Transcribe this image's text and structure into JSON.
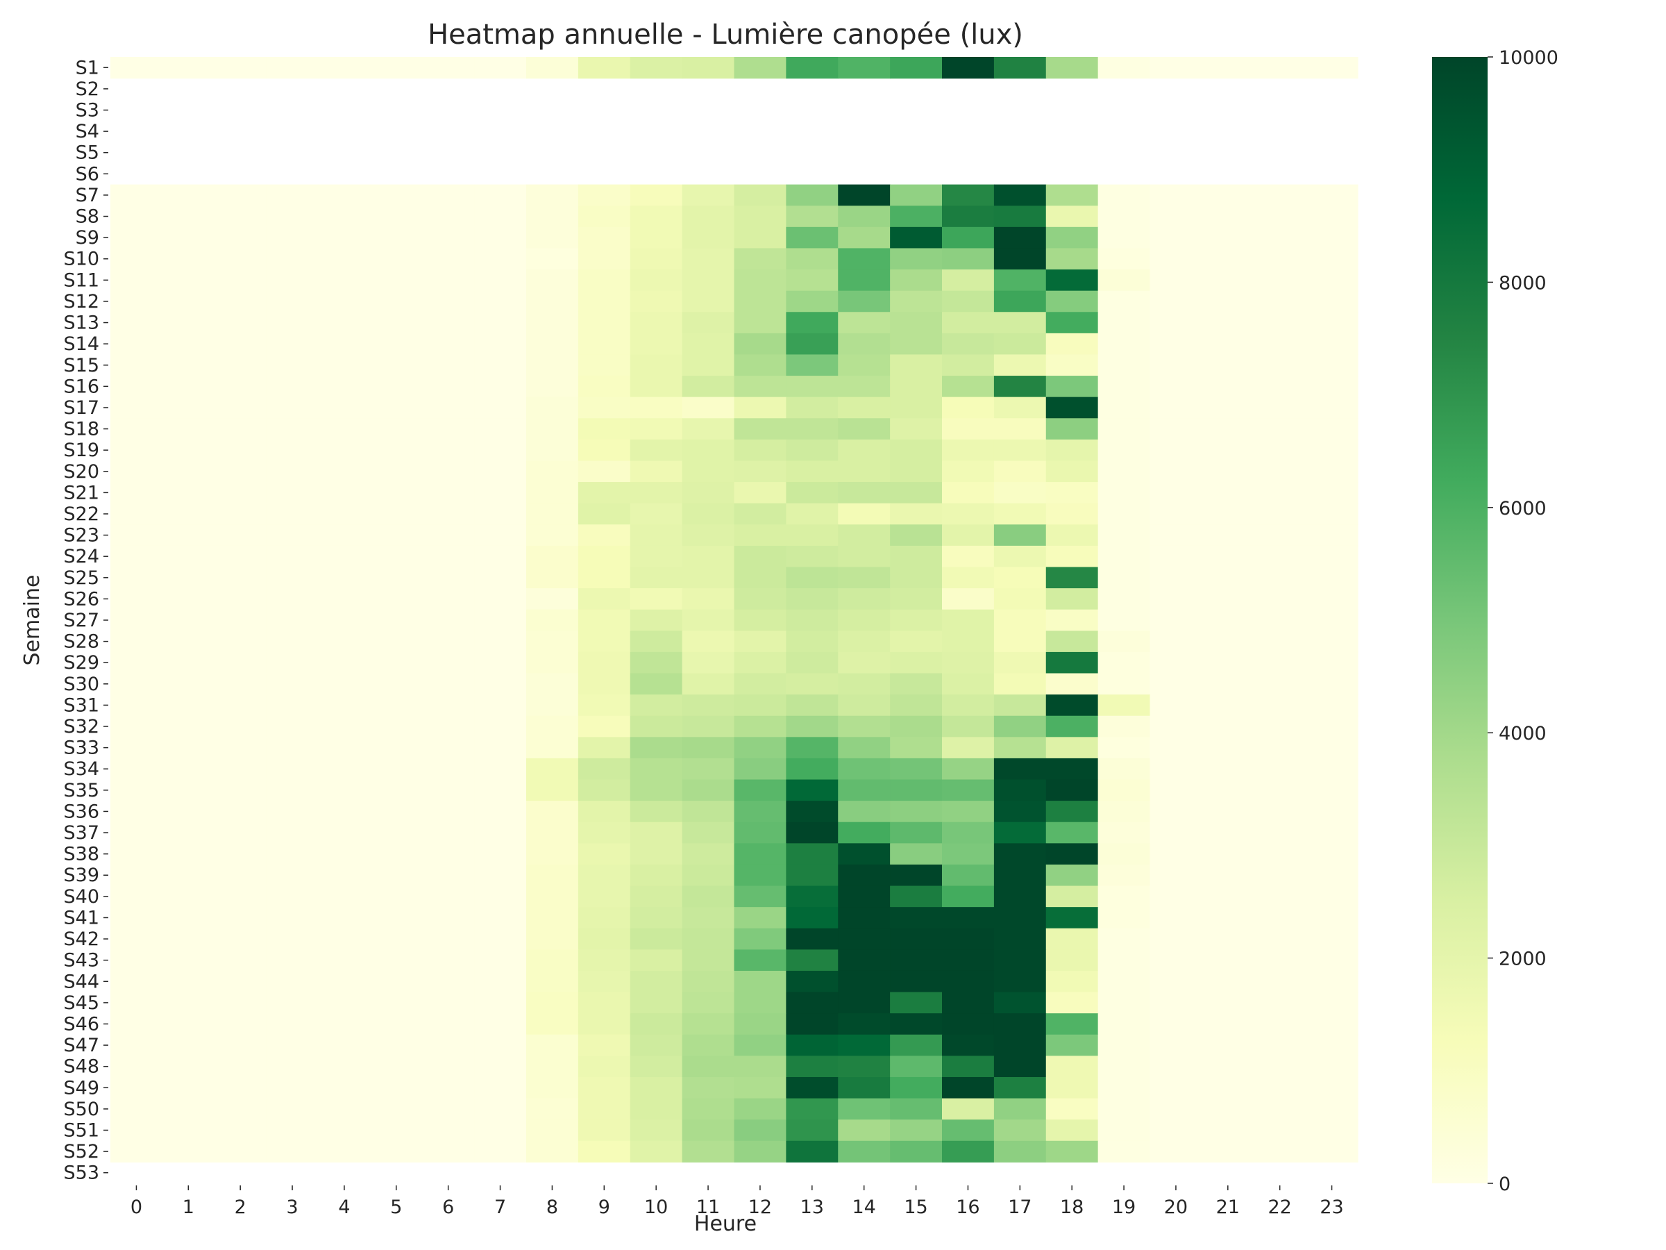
{
  "colors": {
    "scale": [
      "#ffffe5",
      "#f7fcb9",
      "#d9f0a3",
      "#addd8e",
      "#78c679",
      "#41ab5d",
      "#238443",
      "#006837",
      "#004529"
    ],
    "text": "#262626",
    "background": "#ffffff"
  },
  "chart_data": {
    "type": "heatmap",
    "title": "Heatmap annuelle - Lumière canopée (lux)",
    "xlabel": "Heure",
    "ylabel": "Semaine",
    "x_categories": [
      "0",
      "1",
      "2",
      "3",
      "4",
      "5",
      "6",
      "7",
      "8",
      "9",
      "10",
      "11",
      "12",
      "13",
      "14",
      "15",
      "16",
      "17",
      "18",
      "19",
      "20",
      "21",
      "22",
      "23"
    ],
    "y_categories": [
      "S1",
      "S2",
      "S3",
      "S4",
      "S5",
      "S6",
      "S7",
      "S8",
      "S9",
      "S10",
      "S11",
      "S12",
      "S13",
      "S14",
      "S15",
      "S16",
      "S17",
      "S18",
      "S19",
      "S20",
      "S21",
      "S22",
      "S23",
      "S24",
      "S25",
      "S26",
      "S27",
      "S28",
      "S29",
      "S30",
      "S31",
      "S32",
      "S33",
      "S34",
      "S35",
      "S36",
      "S37",
      "S38",
      "S39",
      "S40",
      "S41",
      "S42",
      "S43",
      "S44",
      "S45",
      "S46",
      "S47",
      "S48",
      "S49",
      "S50",
      "S51",
      "S52",
      "S53"
    ],
    "colorbar": {
      "min": 0,
      "max": 10000,
      "ticks": [
        0,
        2000,
        4000,
        6000,
        8000,
        10000
      ]
    },
    "values": [
      [
        0,
        0,
        0,
        0,
        0,
        0,
        0,
        0,
        400,
        1800,
        2400,
        2500,
        3700,
        6300,
        5900,
        6400,
        10000,
        7600,
        3900,
        100,
        0,
        0,
        0,
        0
      ],
      null,
      null,
      null,
      null,
      null,
      [
        0,
        0,
        0,
        0,
        0,
        0,
        0,
        0,
        300,
        800,
        1200,
        1900,
        2600,
        4400,
        10000,
        4400,
        7400,
        9600,
        3700,
        100,
        0,
        0,
        0,
        0
      ],
      [
        0,
        0,
        0,
        0,
        0,
        0,
        0,
        0,
        300,
        900,
        1500,
        2100,
        2500,
        3600,
        4200,
        6000,
        7800,
        7900,
        1800,
        100,
        0,
        0,
        0,
        0
      ],
      [
        0,
        0,
        0,
        0,
        0,
        0,
        0,
        0,
        300,
        800,
        1500,
        2100,
        2500,
        5300,
        3900,
        9200,
        6400,
        10000,
        4400,
        100,
        0,
        0,
        0,
        0
      ],
      [
        0,
        0,
        0,
        0,
        0,
        0,
        0,
        0,
        200,
        800,
        1600,
        2000,
        3200,
        3700,
        5900,
        4400,
        4500,
        10000,
        3900,
        200,
        0,
        0,
        0,
        0
      ],
      [
        0,
        0,
        0,
        0,
        0,
        0,
        0,
        0,
        300,
        900,
        1700,
        2000,
        3300,
        3500,
        5900,
        3800,
        2600,
        5900,
        8600,
        400,
        0,
        0,
        0,
        0
      ],
      [
        0,
        0,
        0,
        0,
        0,
        0,
        0,
        0,
        300,
        900,
        1600,
        2000,
        3300,
        4100,
        5000,
        3300,
        3100,
        6400,
        4700,
        100,
        0,
        0,
        0,
        0
      ],
      [
        0,
        0,
        0,
        0,
        0,
        0,
        0,
        0,
        300,
        900,
        1700,
        2300,
        3300,
        6300,
        3300,
        3400,
        2700,
        2700,
        6200,
        100,
        0,
        0,
        0,
        0
      ],
      [
        0,
        0,
        0,
        0,
        0,
        0,
        0,
        0,
        300,
        900,
        1700,
        2200,
        3900,
        6600,
        3600,
        3400,
        3000,
        2900,
        1100,
        100,
        0,
        0,
        0,
        0
      ],
      [
        0,
        0,
        0,
        0,
        0,
        0,
        0,
        0,
        300,
        900,
        1800,
        2200,
        3700,
        4900,
        3500,
        2500,
        2700,
        1700,
        900,
        100,
        0,
        0,
        0,
        0
      ],
      [
        0,
        0,
        0,
        0,
        0,
        0,
        0,
        0,
        300,
        1000,
        1800,
        2700,
        3300,
        3300,
        3300,
        2500,
        3500,
        7500,
        4900,
        100,
        0,
        0,
        0,
        0
      ],
      [
        0,
        0,
        0,
        0,
        0,
        0,
        0,
        0,
        400,
        900,
        1000,
        800,
        1700,
        2700,
        2500,
        2500,
        1300,
        1700,
        9600,
        100,
        0,
        0,
        0,
        0
      ],
      [
        0,
        0,
        0,
        0,
        0,
        0,
        0,
        0,
        400,
        1400,
        1500,
        1900,
        3200,
        3200,
        3400,
        2300,
        1100,
        1100,
        4500,
        100,
        0,
        0,
        0,
        0
      ],
      [
        0,
        0,
        0,
        0,
        0,
        0,
        0,
        0,
        400,
        1300,
        2100,
        2200,
        2600,
        2800,
        2500,
        2600,
        1700,
        1700,
        2000,
        100,
        0,
        0,
        0,
        0
      ],
      [
        0,
        0,
        0,
        0,
        0,
        0,
        0,
        0,
        500,
        800,
        1600,
        2200,
        2300,
        2500,
        2500,
        2600,
        1500,
        1100,
        1800,
        100,
        0,
        0,
        0,
        0
      ],
      [
        0,
        0,
        0,
        0,
        0,
        0,
        0,
        0,
        500,
        2100,
        2100,
        2300,
        1800,
        2900,
        3000,
        3000,
        1200,
        900,
        1000,
        100,
        0,
        0,
        0,
        0
      ],
      [
        0,
        0,
        0,
        0,
        0,
        0,
        0,
        0,
        500,
        2200,
        1900,
        2400,
        2700,
        2200,
        1400,
        1800,
        1700,
        1500,
        1100,
        100,
        0,
        0,
        0,
        0
      ],
      [
        0,
        0,
        0,
        0,
        0,
        0,
        0,
        0,
        500,
        1100,
        2000,
        2300,
        2500,
        2500,
        2700,
        3400,
        2100,
        4600,
        1700,
        100,
        0,
        0,
        0,
        0
      ],
      [
        0,
        0,
        0,
        0,
        0,
        0,
        0,
        0,
        700,
        1300,
        2000,
        2100,
        2900,
        2800,
        2700,
        2800,
        1100,
        1700,
        1200,
        100,
        0,
        0,
        0,
        0
      ],
      [
        0,
        0,
        0,
        0,
        0,
        0,
        0,
        0,
        700,
        1300,
        2100,
        2100,
        2900,
        3300,
        3200,
        2800,
        1500,
        1300,
        7400,
        100,
        0,
        0,
        0,
        0
      ],
      [
        0,
        0,
        0,
        0,
        0,
        0,
        0,
        0,
        300,
        1700,
        1500,
        1800,
        2800,
        3000,
        2800,
        2700,
        800,
        1400,
        2700,
        100,
        0,
        0,
        0,
        0
      ],
      [
        0,
        0,
        0,
        0,
        0,
        0,
        0,
        0,
        600,
        1500,
        2300,
        2000,
        2600,
        2800,
        2600,
        2400,
        2200,
        1200,
        900,
        100,
        0,
        0,
        0,
        0
      ],
      [
        0,
        0,
        0,
        0,
        0,
        0,
        0,
        0,
        500,
        1500,
        2800,
        1700,
        2100,
        2700,
        2400,
        2100,
        2200,
        1200,
        3000,
        300,
        0,
        0,
        0,
        0
      ],
      [
        0,
        0,
        0,
        0,
        0,
        0,
        0,
        0,
        500,
        1600,
        3200,
        1900,
        2400,
        2800,
        2300,
        2400,
        2300,
        1600,
        8000,
        200,
        0,
        0,
        0,
        0
      ],
      [
        0,
        0,
        0,
        0,
        0,
        0,
        0,
        0,
        400,
        1600,
        3500,
        2200,
        2700,
        2600,
        2700,
        3000,
        2400,
        1400,
        700,
        200,
        0,
        0,
        0,
        0
      ],
      [
        0,
        0,
        0,
        0,
        0,
        0,
        0,
        0,
        400,
        1500,
        2700,
        2800,
        2900,
        3200,
        2800,
        3200,
        2700,
        3000,
        9800,
        1500,
        0,
        0,
        0,
        0
      ],
      [
        0,
        0,
        0,
        0,
        0,
        0,
        0,
        0,
        500,
        1200,
        2900,
        3000,
        3500,
        4000,
        3600,
        3800,
        3100,
        4400,
        6000,
        300,
        0,
        0,
        0,
        0
      ],
      [
        0,
        0,
        0,
        0,
        0,
        0,
        0,
        0,
        500,
        2100,
        3800,
        3900,
        4400,
        5800,
        4400,
        3700,
        2300,
        3500,
        2300,
        200,
        0,
        0,
        0,
        0
      ],
      [
        0,
        0,
        0,
        0,
        0,
        0,
        0,
        0,
        1500,
        2800,
        3500,
        3600,
        4600,
        6200,
        5200,
        5100,
        4300,
        9900,
        9900,
        400,
        0,
        0,
        0,
        0
      ],
      [
        0,
        0,
        0,
        0,
        0,
        0,
        0,
        0,
        1500,
        2700,
        3500,
        3800,
        5700,
        8700,
        5500,
        5500,
        5400,
        9600,
        10000,
        500,
        0,
        0,
        0,
        0
      ],
      [
        0,
        0,
        0,
        0,
        0,
        0,
        0,
        0,
        700,
        2100,
        2900,
        3200,
        5400,
        9800,
        4600,
        4500,
        4400,
        9500,
        7700,
        400,
        0,
        0,
        0,
        0
      ],
      [
        0,
        0,
        0,
        0,
        0,
        0,
        0,
        0,
        700,
        2000,
        2300,
        3000,
        5500,
        10000,
        6200,
        5600,
        5000,
        8600,
        5700,
        300,
        0,
        0,
        0,
        0
      ],
      [
        0,
        0,
        0,
        0,
        0,
        0,
        0,
        0,
        700,
        1800,
        2300,
        2800,
        5800,
        7700,
        9600,
        4600,
        4900,
        9900,
        10000,
        400,
        0,
        0,
        0,
        0
      ],
      [
        0,
        0,
        0,
        0,
        0,
        0,
        0,
        0,
        800,
        1900,
        2500,
        2900,
        5800,
        7700,
        10000,
        10000,
        5500,
        9900,
        4400,
        300,
        0,
        0,
        0,
        0
      ],
      [
        0,
        0,
        0,
        0,
        0,
        0,
        0,
        0,
        800,
        1900,
        2600,
        3100,
        5400,
        8500,
        10000,
        7800,
        6200,
        9900,
        2600,
        200,
        0,
        0,
        0,
        0
      ],
      [
        0,
        0,
        0,
        0,
        0,
        0,
        0,
        0,
        800,
        2000,
        2700,
        3000,
        4200,
        8700,
        10000,
        9900,
        9900,
        9900,
        8500,
        200,
        0,
        0,
        0,
        0
      ],
      [
        0,
        0,
        0,
        0,
        0,
        0,
        0,
        0,
        800,
        2100,
        2900,
        3100,
        4800,
        10000,
        10000,
        10000,
        10000,
        9900,
        1800,
        100,
        0,
        0,
        0,
        0
      ],
      [
        0,
        0,
        0,
        0,
        0,
        0,
        0,
        0,
        900,
        2000,
        2500,
        3100,
        5700,
        7600,
        10000,
        10000,
        10000,
        9900,
        1800,
        100,
        0,
        0,
        0,
        0
      ],
      [
        0,
        0,
        0,
        0,
        0,
        0,
        0,
        0,
        900,
        1900,
        2700,
        3200,
        4100,
        9600,
        10000,
        10000,
        10000,
        9900,
        1500,
        100,
        0,
        0,
        0,
        0
      ],
      [
        0,
        0,
        0,
        0,
        0,
        0,
        0,
        0,
        1000,
        1800,
        2700,
        3300,
        4100,
        10000,
        10000,
        7800,
        10000,
        9500,
        1100,
        100,
        0,
        0,
        0,
        0
      ],
      [
        0,
        0,
        0,
        0,
        0,
        0,
        0,
        0,
        1000,
        1800,
        2900,
        3500,
        4200,
        10000,
        9800,
        9900,
        10000,
        10000,
        5900,
        100,
        0,
        0,
        0,
        0
      ],
      [
        0,
        0,
        0,
        0,
        0,
        0,
        0,
        0,
        600,
        1600,
        2800,
        3700,
        4400,
        8900,
        8700,
        6800,
        9900,
        10000,
        4900,
        100,
        0,
        0,
        0,
        0
      ],
      [
        0,
        0,
        0,
        0,
        0,
        0,
        0,
        0,
        600,
        1700,
        2700,
        3800,
        3800,
        7700,
        7600,
        5600,
        7800,
        10000,
        1600,
        100,
        0,
        0,
        0,
        0
      ],
      [
        0,
        0,
        0,
        0,
        0,
        0,
        0,
        0,
        600,
        1600,
        2500,
        3600,
        3700,
        9700,
        7900,
        6200,
        10000,
        7700,
        1600,
        100,
        0,
        0,
        0,
        0
      ],
      [
        0,
        0,
        0,
        0,
        0,
        0,
        0,
        0,
        500,
        1600,
        2500,
        3700,
        4200,
        6900,
        5200,
        5400,
        2500,
        4400,
        1000,
        100,
        0,
        0,
        0,
        0
      ],
      [
        0,
        0,
        0,
        0,
        0,
        0,
        0,
        0,
        500,
        1600,
        2400,
        3800,
        4600,
        7000,
        3900,
        4300,
        5400,
        4000,
        2000,
        100,
        0,
        0,
        0,
        0
      ],
      [
        0,
        0,
        0,
        0,
        0,
        0,
        0,
        0,
        500,
        1300,
        2200,
        3600,
        4300,
        8200,
        5100,
        5400,
        6700,
        4500,
        4100,
        100,
        0,
        0,
        0,
        0
      ],
      null
    ]
  }
}
